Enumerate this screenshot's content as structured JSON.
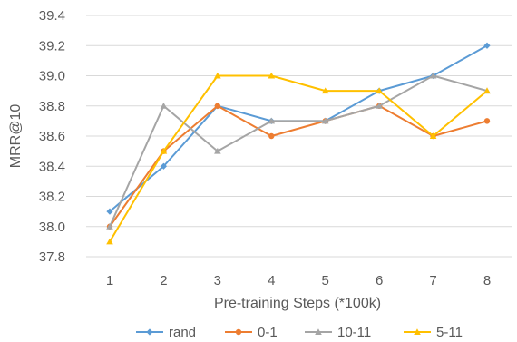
{
  "chart_data": {
    "type": "line",
    "title": "",
    "xlabel": "Pre-training Steps (*100k)",
    "ylabel": "MRR@10",
    "x": [
      1,
      2,
      3,
      4,
      5,
      6,
      7,
      8
    ],
    "x_tick_labels": [
      "1",
      "2",
      "3",
      "4",
      "5",
      "6",
      "7",
      "8"
    ],
    "ylim": [
      37.8,
      39.4
    ],
    "y_ticks": [
      37.8,
      38.0,
      38.2,
      38.4,
      38.6,
      38.8,
      39.0,
      39.2,
      39.4
    ],
    "y_tick_labels": [
      "37.8",
      "38.0",
      "38.2",
      "38.4",
      "38.6",
      "38.8",
      "39.0",
      "39.2",
      "39.4"
    ],
    "grid": true,
    "legend_position": "bottom",
    "series": [
      {
        "name": "rand",
        "color": "#5b9bd5",
        "marker": "diamond",
        "values": [
          38.1,
          38.4,
          38.8,
          38.7,
          38.7,
          38.9,
          39.0,
          39.2
        ]
      },
      {
        "name": "0-1",
        "color": "#ed7d31",
        "marker": "circle",
        "values": [
          38.0,
          38.5,
          38.8,
          38.6,
          38.7,
          38.8,
          38.6,
          38.7
        ]
      },
      {
        "name": "10-11",
        "color": "#a5a5a5",
        "marker": "triangle",
        "values": [
          38.0,
          38.8,
          38.5,
          38.7,
          38.7,
          38.8,
          39.0,
          38.9
        ]
      },
      {
        "name": "5-11",
        "color": "#ffc000",
        "marker": "triangle",
        "values": [
          37.9,
          38.5,
          39.0,
          39.0,
          38.9,
          38.9,
          38.6,
          38.9
        ]
      }
    ]
  }
}
